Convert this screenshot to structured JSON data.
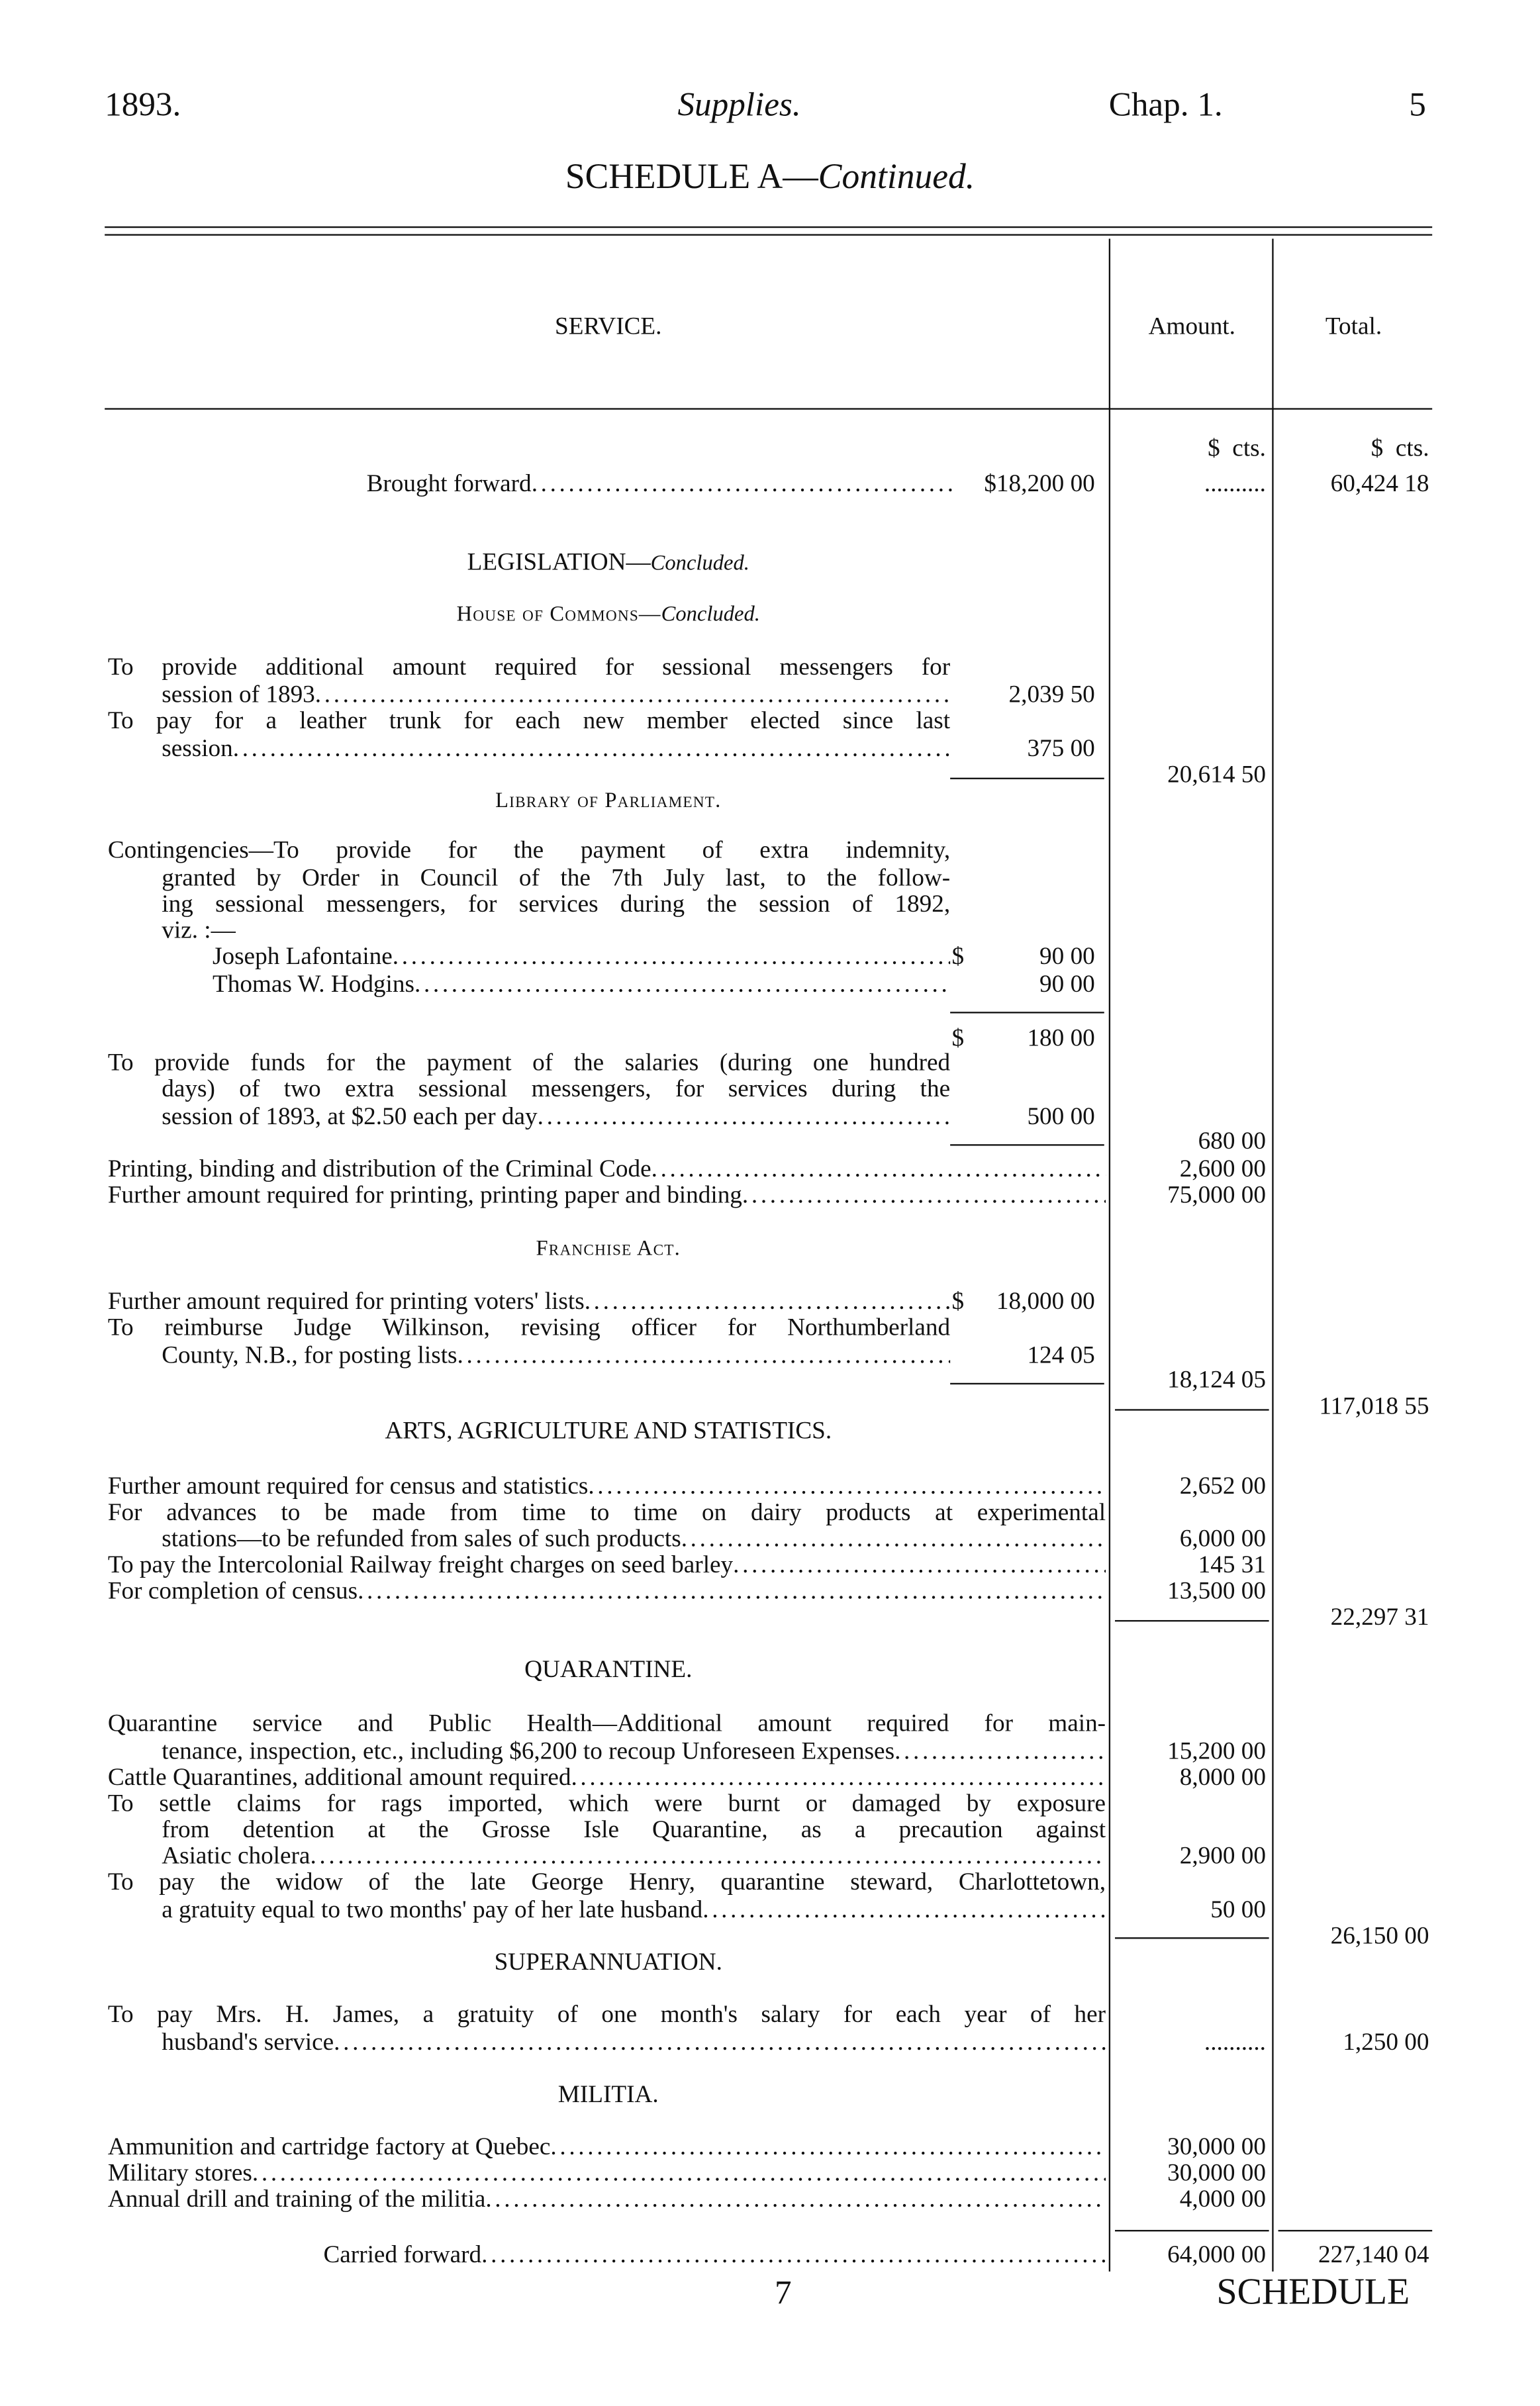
{
  "header": {
    "year": "1893.",
    "title": "Supplies.",
    "chapter": "Chap. 1.",
    "page": "5"
  },
  "schedule_title": {
    "main": "SCHEDULE A—",
    "italic": "Continued."
  },
  "columns": {
    "service": "SERVICE.",
    "amount": "Amount.",
    "total": "Total.",
    "currency": "$",
    "cents": "cts."
  },
  "brought_forward": {
    "label": "Brought forward",
    "sub": "$18,200 00",
    "amount": "..........",
    "total": "60,424 18"
  },
  "legislation": {
    "heading": "LEGISLATION—",
    "heading_italic": "Concluded.",
    "house": {
      "heading": "House of Commons—",
      "heading_italic": "Concluded.",
      "items": [
        {
          "lines": [
            "To provide additional amount required for sessional messengers for",
            "session of 1893"
          ],
          "sub": "2,039 50"
        },
        {
          "lines": [
            "To pay for a leather trunk for each new member elected since last",
            "session"
          ],
          "sub": "375 00"
        }
      ],
      "amount": "20,614 50"
    },
    "library": {
      "heading": "Library of Parliament.",
      "contingencies": {
        "lines": [
          "Contingencies—To provide for the payment of extra indemnity,",
          "granted by Order in Council of the 7th July last, to the follow-",
          "ing sessional messengers, for services during the session of 1892,",
          "viz. :—"
        ],
        "people": [
          {
            "name": "Joseph Lafontaine",
            "dollar": "$",
            "sub": "90 00"
          },
          {
            "name": "Thomas W. Hodgins",
            "sub": "90 00"
          }
        ],
        "subtotal_dollar": "$",
        "subtotal": "180 00"
      },
      "salaries": {
        "lines": [
          "To provide funds for the payment of the salaries (during one hundred",
          "days) of two extra sessional messengers, for services during the",
          "session of 1893, at $2.50 each per day"
        ],
        "sub": "500 00"
      },
      "amount": "680 00",
      "items": [
        {
          "label": "Printing, binding and distribution of the Criminal Code",
          "amount": "2,600 00"
        },
        {
          "label": "Further amount required for printing, printing paper and binding",
          "amount": "75,000 00"
        }
      ]
    },
    "franchise": {
      "heading": "Franchise Act.",
      "items": [
        {
          "lines": [
            "Further amount required for printing voters' lists"
          ],
          "dollar": "$",
          "sub": "18,000 00"
        },
        {
          "lines": [
            "To reimburse Judge Wilkinson, revising officer for Northumberland",
            "County, N.B., for posting lists"
          ],
          "sub": "124 05"
        }
      ],
      "amount": "18,124 05"
    },
    "total": "117,018 55"
  },
  "arts": {
    "heading": "ARTS, AGRICULTURE AND STATISTICS.",
    "items": [
      {
        "lines": [
          "Further amount required for census and statistics"
        ],
        "amount": "2,652 00"
      },
      {
        "lines": [
          "For advances to be made from time to time on dairy products at experimental",
          "stations—to be refunded from sales of such products"
        ],
        "amount": "6,000 00"
      },
      {
        "lines": [
          "To pay the Intercolonial Railway freight charges on seed barley"
        ],
        "amount": "145 31"
      },
      {
        "lines": [
          "For completion of census"
        ],
        "amount": "13,500 00"
      }
    ],
    "total": "22,297 31"
  },
  "quarantine": {
    "heading": "QUARANTINE.",
    "items": [
      {
        "lines": [
          "Quarantine service and Public Health—Additional amount required for main-",
          "tenance, inspection, etc., including $6,200 to recoup Unforeseen Expenses"
        ],
        "amount": "15,200 00"
      },
      {
        "lines": [
          "Cattle Quarantines, additional amount required"
        ],
        "amount": "8,000 00"
      },
      {
        "lines": [
          "To settle claims for rags imported, which were burnt or damaged by exposure",
          "from detention at the Grosse Isle Quarantine, as a precaution against",
          "Asiatic cholera"
        ],
        "amount": "2,900 00"
      },
      {
        "lines": [
          "To pay the widow of the late George Henry, quarantine steward, Charlottetown,",
          "a gratuity equal to two months' pay of her late husband"
        ],
        "amount": "50 00"
      }
    ],
    "total": "26,150 00"
  },
  "superannuation": {
    "heading": "SUPERANNUATION.",
    "items": [
      {
        "lines": [
          "To pay Mrs. H. James, a gratuity of one month's salary for each year of her",
          "husband's service"
        ],
        "amount": "..........",
        "total": "1,250 00"
      }
    ]
  },
  "militia": {
    "heading": "MILITIA.",
    "items": [
      {
        "lines": [
          "Ammunition and cartridge factory at Quebec"
        ],
        "amount": "30,000 00"
      },
      {
        "lines": [
          "Military stores"
        ],
        "amount": "30,000 00"
      },
      {
        "lines": [
          "Annual drill and training of the militia"
        ],
        "amount": "4,000 00"
      }
    ]
  },
  "carried_forward": {
    "label": "Carried forward",
    "amount": "64,000 00",
    "total": "227,140 04"
  },
  "footer": {
    "signature": "7",
    "catchword": "SCHEDULE"
  }
}
